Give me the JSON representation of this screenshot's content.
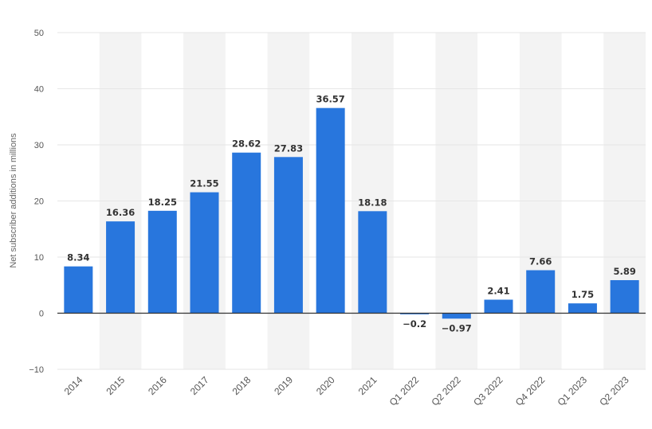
{
  "chart_data": {
    "type": "bar",
    "ylabel": "Net subscriber additions in millions",
    "xlabel": "",
    "ylim": [
      -10,
      50
    ],
    "yticks": [
      -10,
      0,
      10,
      20,
      30,
      40,
      50
    ],
    "categories": [
      "2014",
      "2015",
      "2016",
      "2017",
      "2018",
      "2019",
      "2020",
      "2021",
      "Q1 2022",
      "Q2 2022",
      "Q3 2022",
      "Q4 2022",
      "Q1 2023",
      "Q2 2023"
    ],
    "values": [
      8.34,
      16.36,
      18.25,
      21.55,
      28.62,
      27.83,
      36.57,
      18.18,
      -0.2,
      -0.97,
      2.41,
      7.66,
      1.75,
      5.89
    ],
    "value_labels": [
      "8.34",
      "16.36",
      "18.25",
      "21.55",
      "28.62",
      "27.83",
      "36.57",
      "18.18",
      "−0.2",
      "−0.97",
      "2.41",
      "7.66",
      "1.75",
      "5.89"
    ],
    "ytick_labels": [
      "−10",
      "0",
      "10",
      "20",
      "30",
      "40",
      "50"
    ],
    "grid": true,
    "legend": "none",
    "colors": {
      "bar": "#2876dd",
      "band": "#f3f3f3",
      "gridline": "#e6e6e6",
      "zero_line": "#333333"
    }
  }
}
